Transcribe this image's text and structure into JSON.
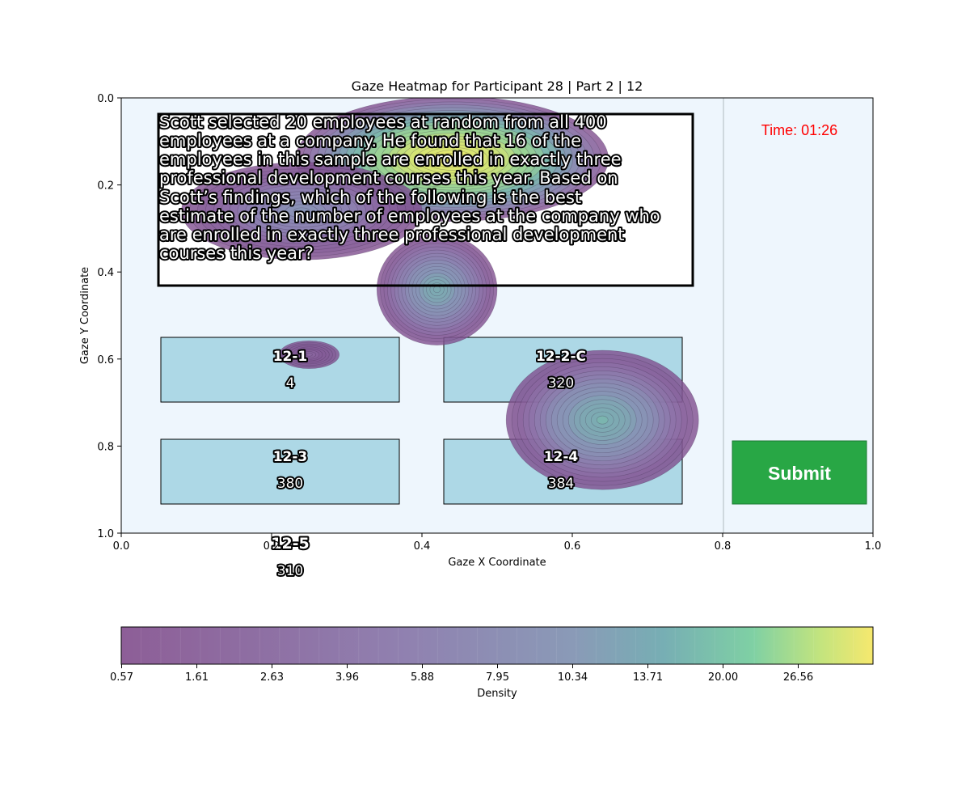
{
  "chart_data": {
    "type": "heatmap",
    "title": "Gaze Heatmap for Participant 28 | Part 2 | 12",
    "xlabel": "Gaze X Coordinate",
    "ylabel": "Gaze Y Coordinate",
    "xlim": [
      0.0,
      1.0
    ],
    "ylim": [
      1.0,
      0.0
    ],
    "y_axis_inverted": true,
    "x_ticks": [
      "0.0",
      "0.2",
      "0.4",
      "0.6",
      "0.8",
      "1.0"
    ],
    "y_ticks": [
      "0.0",
      "0.2",
      "0.4",
      "0.6",
      "0.8",
      "1.0"
    ],
    "grid": false,
    "colormap": "viridis",
    "colorbar": {
      "label": "Density",
      "orientation": "horizontal",
      "ticks": [
        "0.57",
        "1.61",
        "2.63",
        "3.96",
        "5.88",
        "7.95",
        "10.34",
        "13.71",
        "20.00",
        "26.56"
      ]
    },
    "density_clusters": [
      {
        "x": 0.44,
        "y": 0.14,
        "peak": 30,
        "sx": 0.13,
        "sy": 0.09
      },
      {
        "x": 0.24,
        "y": 0.26,
        "peak": 5,
        "sx": 0.1,
        "sy": 0.07
      },
      {
        "x": 0.42,
        "y": 0.44,
        "peak": 8,
        "sx": 0.05,
        "sy": 0.08
      },
      {
        "x": 0.64,
        "y": 0.74,
        "peak": 9,
        "sx": 0.08,
        "sy": 0.1
      },
      {
        "x": 0.25,
        "y": 0.59,
        "peak": 1.2,
        "sx": 0.025,
        "sy": 0.02
      }
    ]
  },
  "question": {
    "lines": [
      "Scott selected 20 employees at random from all 400",
      "employees at a company. He found that 16 of the",
      "employees in this sample are enrolled in exactly three",
      "professional development courses this year. Based on",
      "Scott’s findings, which of the following is the best",
      "estimate of the number of employees at the company who",
      "are enrolled in exactly three professional development",
      "courses this year?"
    ]
  },
  "timer": {
    "text": "Time: 01:26",
    "color": "#ff0000"
  },
  "options": [
    {
      "id": "12-1",
      "value": "4"
    },
    {
      "id": "12-2-C",
      "value": "320"
    },
    {
      "id": "12-3",
      "value": "380"
    },
    {
      "id": "12-4",
      "value": "384"
    },
    {
      "id": "12-5",
      "value": "310"
    }
  ],
  "submit": {
    "label": "Submit",
    "color": "#28a745"
  },
  "colors": {
    "panel_bg": "#eef6fd",
    "option_box": "#add8e6",
    "divider": "#cfd8de"
  }
}
